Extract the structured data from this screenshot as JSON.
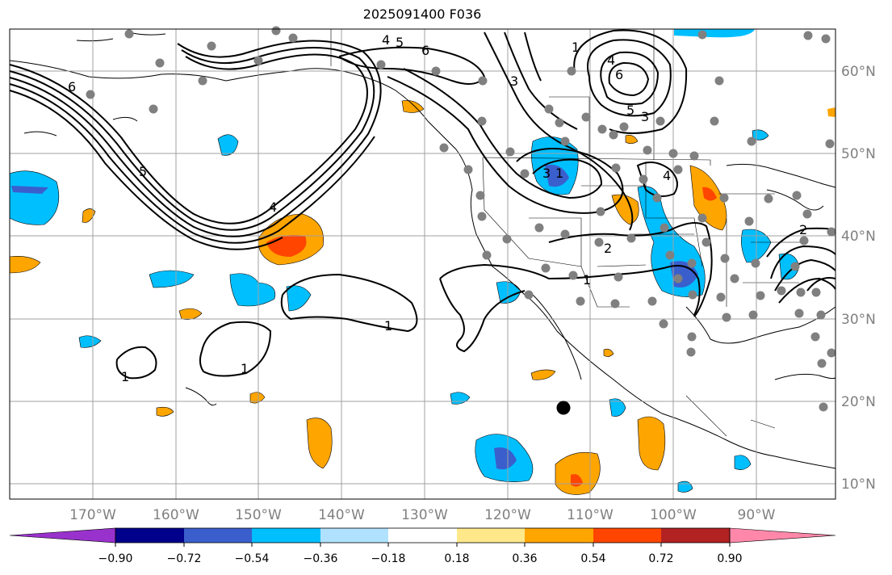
{
  "title": "2025091400 F036",
  "map": {
    "lon_ticks": [
      "170°W",
      "160°W",
      "150°W",
      "140°W",
      "130°W",
      "120°W",
      "110°W",
      "100°W",
      "90°W"
    ],
    "lat_ticks": [
      "60°N",
      "50°N",
      "40°N",
      "30°N",
      "20°N",
      "10°N"
    ],
    "contour_labels": [
      "6",
      "5",
      "4",
      "3",
      "6",
      "5",
      "4",
      "3",
      "2",
      "1",
      "1",
      "1",
      "1",
      "4",
      "6",
      "5",
      "3",
      "1",
      "2"
    ]
  },
  "colorbar": {
    "ticks": [
      "−0.90",
      "−0.72",
      "−0.54",
      "−0.36",
      "−0.18",
      "0.18",
      "0.36",
      "0.54",
      "0.72",
      "0.90"
    ],
    "colors": [
      "#9932cc",
      "#00008b",
      "#3a5fcd",
      "#00bfff",
      "#b0e2ff",
      "#ffffff",
      "#ffe88a",
      "#ffa500",
      "#ff4500",
      "#b22222",
      "#ff88aa"
    ]
  },
  "colors": {
    "axis_label": "#808080",
    "grid": "#a0a0a0",
    "station": "#808080"
  }
}
